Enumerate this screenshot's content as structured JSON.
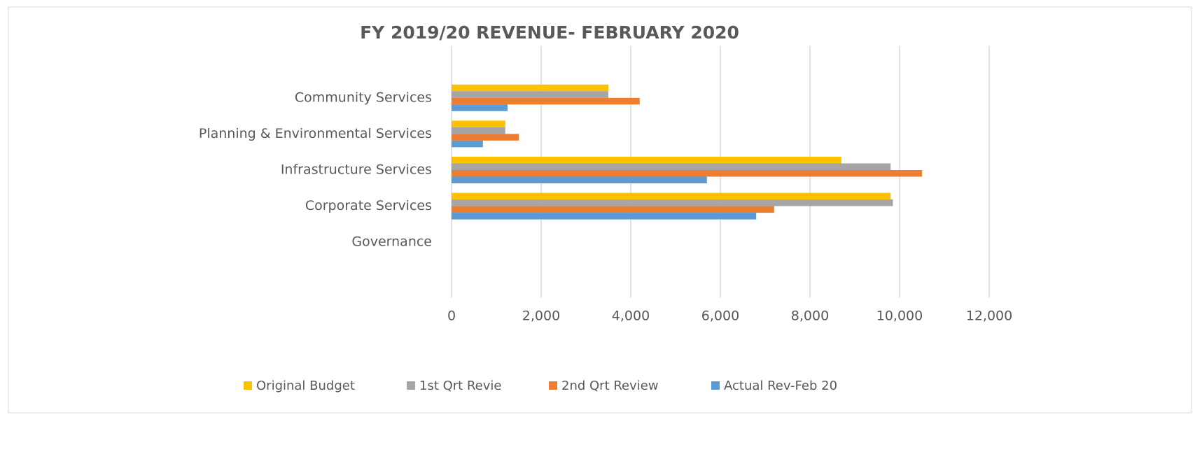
{
  "chart_data": {
    "type": "hbar",
    "title": "FY 2019/20 REVENUE- FEBRUARY 2020",
    "categories": [
      "Community Services",
      "Planning & Environmental Services",
      "Infrastructure Services",
      "Corporate Services",
      "Governance"
    ],
    "series": [
      {
        "name": "Original Budget",
        "color": "#ffc000",
        "values": [
          3500,
          1200,
          8700,
          9800,
          0
        ]
      },
      {
        "name": "1st Qrt Revie",
        "color": "#a5a5a5",
        "values": [
          3500,
          1200,
          9800,
          9850,
          0
        ]
      },
      {
        "name": "2nd Qrt Review",
        "color": "#ed7d31",
        "values": [
          4200,
          1500,
          10500,
          7200,
          0
        ]
      },
      {
        "name": "Actual  Rev-Feb 20",
        "color": "#5b9bd5",
        "values": [
          1250,
          700,
          5700,
          6800,
          0
        ]
      }
    ],
    "xlim": [
      0,
      12000
    ],
    "xticks": [
      0,
      {
        "value": 2000,
        "label": "2,000"
      },
      {
        "value": 4000,
        "label": "4,000"
      },
      {
        "value": 6000,
        "label": "6,000"
      },
      {
        "value": 8000,
        "label": "8,000"
      },
      {
        "value": 10000,
        "label": "10,000"
      },
      {
        "value": 12000,
        "label": "12,000"
      }
    ],
    "grid": true
  }
}
